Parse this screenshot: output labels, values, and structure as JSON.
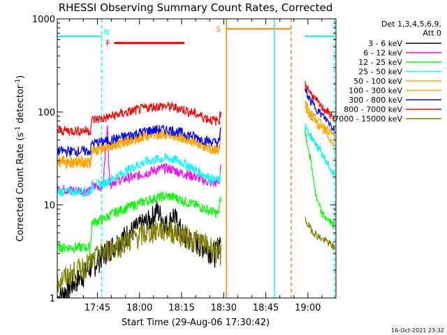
{
  "chart_data": {
    "type": "line",
    "title": "RHESSI Observing Summary Count Rates, Corrected",
    "xlabel": "Start Time (29-Aug-06 17:30:42)",
    "ylabel_main": "Corrected Count Rate (s",
    "ylabel_sup1": "-1",
    "ylabel_mid": " detector",
    "ylabel_sup2": "-1",
    "ylabel_end": ")",
    "yscale": "log",
    "ylim": [
      1,
      1000
    ],
    "xlim_minutes_after_1730": [
      0.7,
      100
    ],
    "x_ticks": [
      {
        "label": "17:45",
        "minute": 15
      },
      {
        "label": "18:00",
        "minute": 30
      },
      {
        "label": "18:15",
        "minute": 45
      },
      {
        "label": "18:30",
        "minute": 60
      },
      {
        "label": "18:45",
        "minute": 75
      },
      {
        "label": "19:00",
        "minute": 90
      }
    ],
    "y_ticks": [
      {
        "label": "1",
        "value": 1
      },
      {
        "label": "10",
        "value": 10
      },
      {
        "label": "100",
        "value": 100
      },
      {
        "label": "1000",
        "value": 1000
      }
    ],
    "legend_header": [
      "Det 1,3,4,5,6,9,",
      "Att 0"
    ],
    "legend_placement": "right",
    "series": [
      {
        "name": "3 - 6 keV",
        "color": "#000000",
        "x": [
          0.7,
          15,
          18,
          22,
          26,
          30,
          34,
          36,
          38,
          40,
          42,
          44,
          46,
          50,
          54,
          57,
          59
        ],
        "y": [
          1.0,
          2.5,
          3.2,
          4.0,
          5.0,
          6.0,
          7.0,
          9.0,
          7.5,
          6.0,
          8.0,
          6.0,
          4.5,
          4.0,
          3.5,
          3.0,
          4.5
        ]
      },
      {
        "name": "6 - 12 keV",
        "color": "#ff00ff",
        "x": [
          0.7,
          12.5,
          13,
          17,
          18.5,
          19.5,
          21,
          24,
          28,
          32,
          36,
          39,
          42,
          45,
          48,
          52,
          56,
          58.5,
          59
        ],
        "y": [
          15,
          14,
          16,
          16,
          70,
          17,
          18,
          19,
          20,
          22,
          24,
          25,
          24,
          22,
          21,
          19,
          17,
          18,
          28
        ]
      },
      {
        "name": "12 - 25 keV",
        "color": "#00ff00",
        "x": [
          0.7,
          12.5,
          13,
          17,
          20,
          24,
          28,
          32,
          36,
          40,
          43,
          46,
          50,
          54,
          58,
          59
        ],
        "y": [
          3.5,
          3.5,
          6.5,
          7.0,
          8.0,
          9.0,
          10,
          11,
          12,
          12.5,
          12,
          11,
          10,
          9.0,
          8.0,
          12
        ]
      },
      {
        "name": "25 - 50 keV",
        "color": "#00ffff",
        "x": [
          0.7,
          12.5,
          13,
          17,
          20,
          24,
          28,
          32,
          36,
          40,
          44,
          48,
          52,
          56,
          58.5,
          59
        ],
        "y": [
          14,
          14,
          16,
          17,
          19,
          22,
          26,
          29,
          31,
          32,
          30,
          26,
          22,
          19,
          18,
          25
        ]
      },
      {
        "name": "50 - 100 keV",
        "color": "#ffa500",
        "x": [
          0.7,
          12.5,
          13,
          17,
          21,
          25,
          29,
          33,
          37,
          41,
          45,
          49,
          53,
          57,
          58.5,
          59
        ],
        "y": [
          28,
          28,
          38,
          40,
          44,
          48,
          52,
          56,
          58,
          57,
          53,
          48,
          43,
          39,
          40,
          60
        ]
      },
      {
        "name": "100 - 300 keV",
        "color": "#ffa500",
        "x": [
          0.7,
          12.5,
          13,
          17,
          21,
          25,
          29,
          33,
          37,
          41,
          45,
          49,
          53,
          57,
          58.5,
          59
        ],
        "y": [
          30,
          30,
          38,
          40,
          44,
          48,
          52,
          56,
          58,
          57,
          53,
          48,
          43,
          39,
          40,
          60
        ]
      },
      {
        "name": "300 - 800 keV",
        "color": "#0000ff",
        "x": [
          0.7,
          12.5,
          13,
          17,
          21,
          25,
          29,
          33,
          37,
          41,
          45,
          49,
          53,
          57,
          58.5,
          59
        ],
        "y": [
          38,
          38,
          46,
          48,
          51,
          55,
          59,
          63,
          65,
          64,
          60,
          55,
          50,
          47,
          48,
          70
        ]
      },
      {
        "name": "800 - 7000 keV",
        "color": "#ff0000",
        "x": [
          0.7,
          12.5,
          13,
          17,
          21,
          25,
          29,
          33,
          37,
          41,
          45,
          49,
          53,
          57,
          58.5,
          59
        ],
        "y": [
          63,
          63,
          82,
          85,
          92,
          98,
          105,
          112,
          116,
          114,
          108,
          98,
          88,
          80,
          82,
          110
        ]
      },
      {
        "name": "7000 - 15000 keV",
        "color": "#808000",
        "x": [
          0.7,
          13,
          16,
          20,
          24,
          28,
          32,
          36,
          40,
          44,
          48,
          52,
          56,
          59
        ],
        "y": [
          1.5,
          2.5,
          3.0,
          3.5,
          4.0,
          4.5,
          5.0,
          5.5,
          5.5,
          5.0,
          4.5,
          4.0,
          3.5,
          3.0
        ]
      }
    ],
    "series_after_gap": [
      {
        "color": "#ff0000",
        "x": [
          89,
          91,
          94,
          97,
          99.5
        ],
        "y": [
          200,
          160,
          120,
          100,
          85
        ]
      },
      {
        "color": "#0000ff",
        "x": [
          89,
          91,
          94,
          97,
          99.5
        ],
        "y": [
          170,
          130,
          100,
          80,
          65
        ]
      },
      {
        "color": "#ffa500",
        "x": [
          89,
          91,
          94,
          97,
          99.5
        ],
        "y": [
          130,
          100,
          80,
          65,
          55
        ]
      },
      {
        "color": "#ffa500",
        "x": [
          89,
          91,
          94,
          97,
          99.5
        ],
        "y": [
          110,
          88,
          70,
          55,
          45
        ]
      },
      {
        "color": "#00ffff",
        "x": [
          89,
          91,
          94,
          97,
          99.5
        ],
        "y": [
          70,
          55,
          40,
          28,
          20
        ]
      },
      {
        "color": "#00ff00",
        "x": [
          89,
          91,
          93,
          95,
          97,
          99.5
        ],
        "y": [
          60,
          30,
          12,
          8,
          7,
          6
        ]
      },
      {
        "color": "#808000",
        "x": [
          89,
          91,
          94,
          97,
          99.5
        ],
        "y": [
          7,
          5.5,
          4.5,
          4.0,
          3.5
        ]
      }
    ],
    "annotations": [
      {
        "kind": "bar",
        "label": "N",
        "color": "#00ffff",
        "x_start": 0.7,
        "x_end": 16.5,
        "y": 650
      },
      {
        "kind": "bar",
        "label": "",
        "color": "#00ffff",
        "x_start": 89,
        "x_end": 99.5,
        "y": 650
      },
      {
        "kind": "bar",
        "label": "F",
        "color": "#ff0000",
        "x_start": 21,
        "x_end": 46,
        "y": 550
      },
      {
        "kind": "bar",
        "label": "S",
        "color": "#ff8000",
        "x_start": 61,
        "x_end": 84,
        "y": 780
      },
      {
        "kind": "vline_dashed",
        "color": "#00ffff",
        "x": 16.5
      },
      {
        "kind": "vline_dashed",
        "color": "#00ffff",
        "x": 99.5
      },
      {
        "kind": "vline_dashed",
        "color": "#ff8000",
        "x": 84
      },
      {
        "kind": "vline_solid",
        "color": "#00ffff",
        "x": 78
      },
      {
        "kind": "vline_solid",
        "color": "#ff8000",
        "x": 61
      }
    ],
    "grid": false
  },
  "timestamp": "16-Oct-2021 23:32"
}
